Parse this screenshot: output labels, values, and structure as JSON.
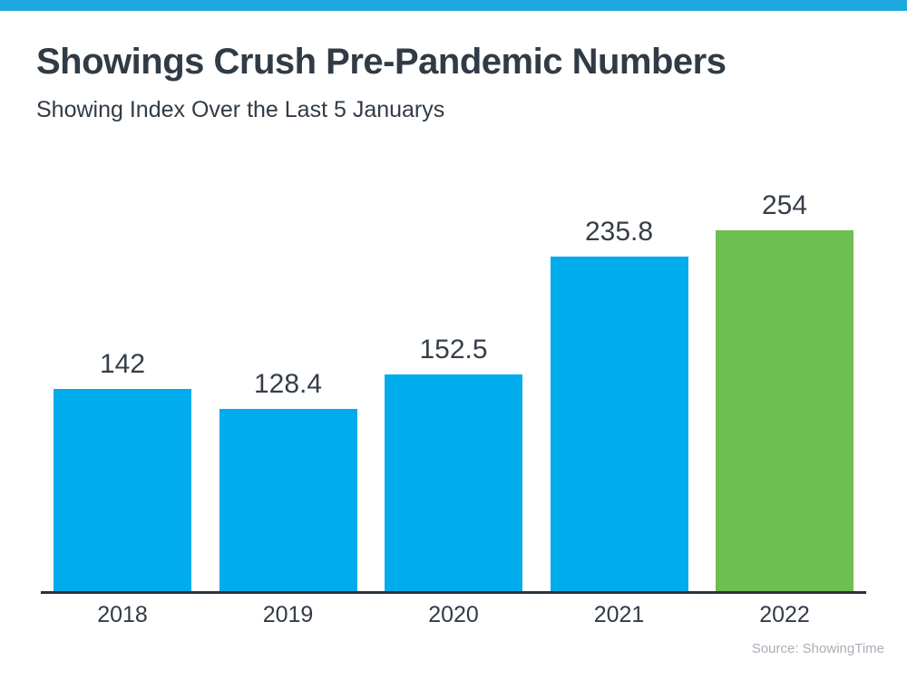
{
  "header": {
    "title": "Showings Crush Pre-Pandemic Numbers",
    "subtitle": "Showing Index Over the Last 5 Januarys"
  },
  "chart_data": {
    "type": "bar",
    "title": "Showings Crush Pre-Pandemic Numbers",
    "subtitle": "Showing Index Over the Last 5 Januarys",
    "categories": [
      "2018",
      "2019",
      "2020",
      "2021",
      "2022"
    ],
    "values": [
      142,
      128.4,
      152.5,
      235.8,
      254
    ],
    "value_labels": [
      "142",
      "128.4",
      "152.5",
      "235.8",
      "254"
    ],
    "bar_colors": [
      "#00acec",
      "#00acec",
      "#00acec",
      "#00acec",
      "#6ebe51"
    ],
    "xlabel": "",
    "ylabel": "",
    "ylim": [
      0,
      280
    ],
    "grid": false,
    "legend": false,
    "data_labels": "above bars"
  },
  "footer": {
    "source": "Source: ShowingTime"
  },
  "colors": {
    "top_strip": "#1fa9e3",
    "bar_blue": "#00acec",
    "bar_green": "#6ebe51",
    "text_dark": "#313b45",
    "axis": "#2a333d",
    "source_gray": "#a9afb6"
  }
}
